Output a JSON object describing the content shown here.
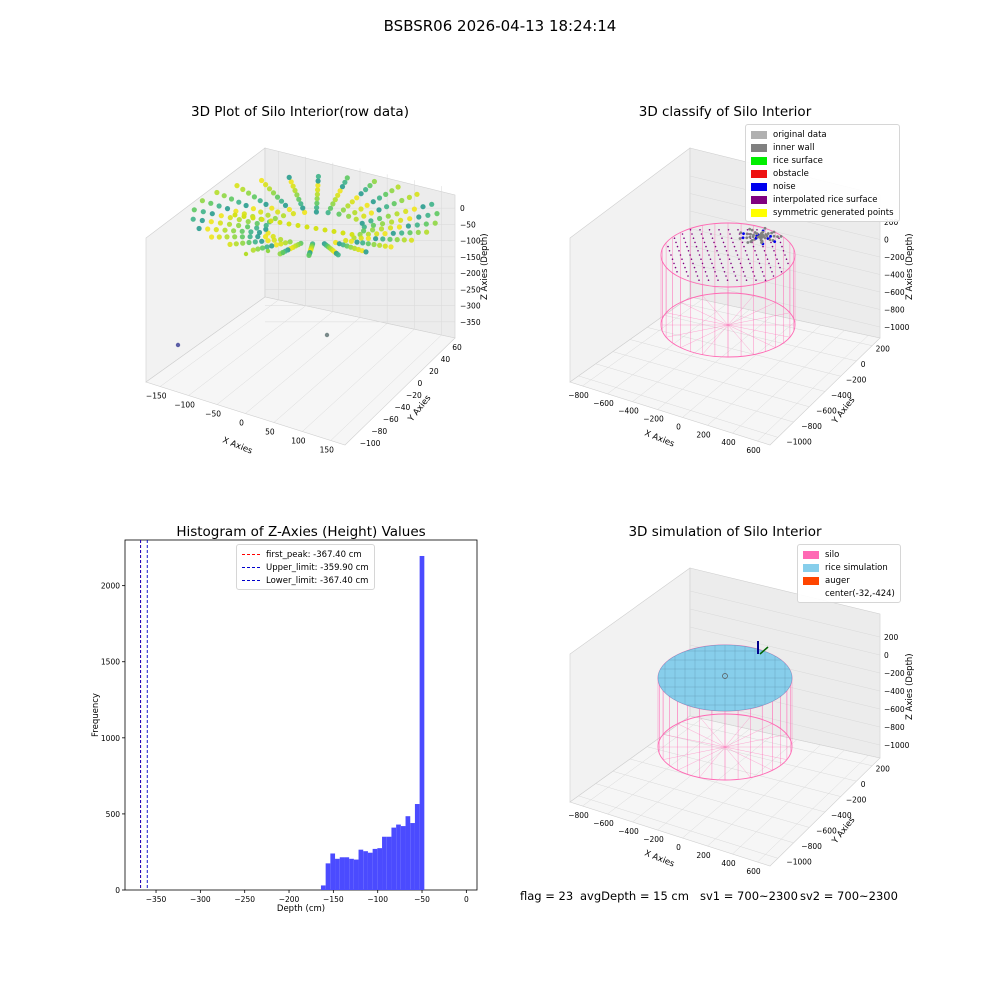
{
  "suptitle": "BSBSR06 2026-04-13 18:24:14",
  "panels": {
    "raw": {
      "title": "3D Plot of Silo Interior(row data)",
      "xlabel": "X Axies",
      "ylabel": "Y Axies",
      "zlabel": "Z Axies (Depth)",
      "xticks": [
        "−150",
        "−100",
        "−50",
        "0",
        "50",
        "100",
        "150"
      ],
      "yticks": [
        "−100",
        "−80",
        "−60",
        "−40",
        "−20",
        "0",
        "20",
        "40",
        "60"
      ],
      "zticks": [
        "0",
        "−50",
        "−100",
        "−150",
        "−200",
        "−250",
        "−300",
        "−350"
      ]
    },
    "classify": {
      "title": "3D classify of Silo Interior",
      "xlabel": "X Axies",
      "ylabel": "Y Axies",
      "zlabel": "Z Axies (Depth)",
      "xticks": [
        "−800",
        "−600",
        "−400",
        "−200",
        "0",
        "200",
        "400",
        "600"
      ],
      "yticks": [
        "−1000",
        "−800",
        "−600",
        "−400",
        "−200",
        "0",
        "200"
      ],
      "zticks": [
        "200",
        "0",
        "−200",
        "−400",
        "−600",
        "−800",
        "−1000"
      ],
      "legend": [
        {
          "label": "original data",
          "color": "#b0b0b0"
        },
        {
          "label": "inner wall",
          "color": "#808080"
        },
        {
          "label": "rice surface",
          "color": "#00ee00"
        },
        {
          "label": "obstacle",
          "color": "#ee1111"
        },
        {
          "label": "noise",
          "color": "#0000ee"
        },
        {
          "label": "interpolated rice surface",
          "color": "#800080"
        },
        {
          "label": "symmetric generated points",
          "color": "#ffff00"
        }
      ]
    },
    "simulation": {
      "title": "3D simulation of Silo Interior",
      "xlabel": "X Axies",
      "ylabel": "Y Axies",
      "zlabel": "Z Axies (Depth)",
      "xticks": [
        "−800",
        "−600",
        "−400",
        "−200",
        "0",
        "200",
        "400",
        "600"
      ],
      "yticks": [
        "−1000",
        "−800",
        "−600",
        "−400",
        "−200",
        "0",
        "200"
      ],
      "zticks": [
        "200",
        "0",
        "−200",
        "−400",
        "−600",
        "−800",
        "−1000"
      ],
      "legend": [
        {
          "label": "silo",
          "color": "#ff69b4"
        },
        {
          "label": "rice simulation",
          "color": "#87ceeb"
        },
        {
          "label": "auger",
          "color": "#ff4500"
        },
        {
          "label": "center(-32,-424)",
          "color": ""
        }
      ]
    }
  },
  "chart_data": {
    "type": "bar",
    "title": "Histogram of Z-Axies (Height) Values",
    "xlabel": "Depth (cm)",
    "ylabel": "Frequency",
    "xlim": [
      -385,
      12
    ],
    "ylim": [
      0,
      2300
    ],
    "xticks": [
      -350,
      -300,
      -250,
      -200,
      -150,
      -100,
      -50,
      0
    ],
    "xtick_labels": [
      "−350",
      "−300",
      "−250",
      "−200",
      "−150",
      "−100",
      "−50",
      "0"
    ],
    "yticks": [
      0,
      500,
      1000,
      1500,
      2000
    ],
    "bin_width": 5.3,
    "bins": [
      {
        "x": -164.0,
        "count": 30
      },
      {
        "x": -158.7,
        "count": 175
      },
      {
        "x": -153.4,
        "count": 240
      },
      {
        "x": -148.1,
        "count": 205
      },
      {
        "x": -142.8,
        "count": 215
      },
      {
        "x": -137.5,
        "count": 215
      },
      {
        "x": -132.2,
        "count": 205
      },
      {
        "x": -126.9,
        "count": 200
      },
      {
        "x": -121.6,
        "count": 265
      },
      {
        "x": -116.3,
        "count": 255
      },
      {
        "x": -111.0,
        "count": 245
      },
      {
        "x": -105.7,
        "count": 270
      },
      {
        "x": -100.4,
        "count": 275
      },
      {
        "x": -95.1,
        "count": 350
      },
      {
        "x": -89.8,
        "count": 350
      },
      {
        "x": -84.5,
        "count": 410
      },
      {
        "x": -79.2,
        "count": 430
      },
      {
        "x": -73.9,
        "count": 420
      },
      {
        "x": -68.6,
        "count": 485
      },
      {
        "x": -63.3,
        "count": 440
      },
      {
        "x": -58.0,
        "count": 565
      },
      {
        "x": -52.7,
        "count": 2195
      }
    ],
    "lines": [
      {
        "label": "first_peak: -367.40 cm",
        "x": -367.4,
        "color": "#ff0000"
      },
      {
        "label": "Upper_limit: -359.90 cm",
        "x": -359.9,
        "color": "#0000cc"
      },
      {
        "label": "Lower_limit: -367.40 cm",
        "x": -367.4,
        "color": "#0000cc"
      }
    ],
    "bar_color": "#4b4bff"
  },
  "footer": {
    "flag": "flag = 23",
    "avg": "avgDepth = 15 cm",
    "sv1": "sv1 = 700~2300",
    "sv2": "sv2 = 700~2300"
  }
}
